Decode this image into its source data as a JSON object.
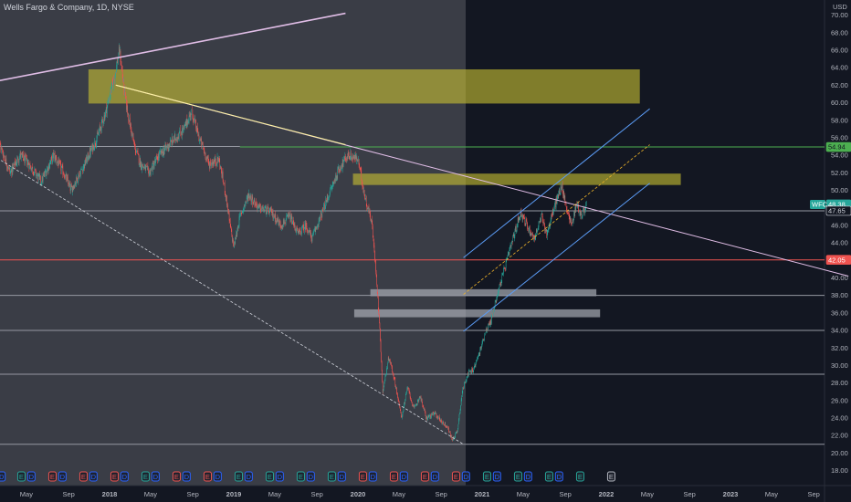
{
  "header": {
    "title": "Wells Fargo & Company, 1D, NYSE"
  },
  "chart_data": {
    "type": "candlestick",
    "symbol": "WFC",
    "currency": "USD",
    "ylim": [
      17,
      71
    ],
    "y_ticks": [
      18,
      20,
      22,
      24,
      26,
      28,
      30,
      32,
      34,
      36,
      38,
      40,
      42,
      44,
      46,
      48,
      50,
      52,
      54,
      56,
      58,
      60,
      62,
      64,
      66,
      68,
      70
    ],
    "y_tick_labels": [
      "18.00",
      "20.00",
      "22.00",
      "24.00",
      "26.00",
      "28.00",
      "30.00",
      "32.00",
      "34.00",
      "36.00",
      "38.00",
      "40.00",
      "42.00",
      "44.00",
      "46.00",
      "48.00",
      "50.00",
      "52.00",
      "54.00",
      "56.00",
      "58.00",
      "60.00",
      "62.00",
      "64.00",
      "66.00",
      "68.00",
      "70.00"
    ],
    "x_ticks": [
      {
        "t": 2017.33,
        "label": "May",
        "bold": false
      },
      {
        "t": 2017.67,
        "label": "Sep",
        "bold": false
      },
      {
        "t": 2018.0,
        "label": "2018",
        "bold": true
      },
      {
        "t": 2018.33,
        "label": "May",
        "bold": false
      },
      {
        "t": 2018.67,
        "label": "Sep",
        "bold": false
      },
      {
        "t": 2019.0,
        "label": "2019",
        "bold": true
      },
      {
        "t": 2019.33,
        "label": "May",
        "bold": false
      },
      {
        "t": 2019.67,
        "label": "Sep",
        "bold": false
      },
      {
        "t": 2020.0,
        "label": "2020",
        "bold": true
      },
      {
        "t": 2020.33,
        "label": "May",
        "bold": false
      },
      {
        "t": 2020.67,
        "label": "Sep",
        "bold": false
      },
      {
        "t": 2021.0,
        "label": "2021",
        "bold": true
      },
      {
        "t": 2021.33,
        "label": "May",
        "bold": false
      },
      {
        "t": 2021.67,
        "label": "Sep",
        "bold": false
      },
      {
        "t": 2022.0,
        "label": "2022",
        "bold": true
      },
      {
        "t": 2022.33,
        "label": "May",
        "bold": false
      },
      {
        "t": 2022.67,
        "label": "Sep",
        "bold": false
      },
      {
        "t": 2023.0,
        "label": "2023",
        "bold": true
      },
      {
        "t": 2023.33,
        "label": "May",
        "bold": false
      },
      {
        "t": 2023.67,
        "label": "Sep",
        "bold": false
      }
    ],
    "price_path": [
      [
        2017.0,
        57.0
      ],
      [
        2017.05,
        59.0
      ],
      [
        2017.12,
        55.0
      ],
      [
        2017.2,
        52.0
      ],
      [
        2017.28,
        54.0
      ],
      [
        2017.35,
        53.0
      ],
      [
        2017.45,
        51.0
      ],
      [
        2017.55,
        54.0
      ],
      [
        2017.63,
        52.0
      ],
      [
        2017.69,
        50.0
      ],
      [
        2017.8,
        53.0
      ],
      [
        2017.9,
        56.0
      ],
      [
        2017.97,
        59.0
      ],
      [
        2018.04,
        63.0
      ],
      [
        2018.08,
        66.0
      ],
      [
        2018.13,
        60.0
      ],
      [
        2018.2,
        55.0
      ],
      [
        2018.25,
        53.0
      ],
      [
        2018.32,
        52.0
      ],
      [
        2018.4,
        54.0
      ],
      [
        2018.5,
        55.5
      ],
      [
        2018.6,
        57.0
      ],
      [
        2018.66,
        59.0
      ],
      [
        2018.72,
        56.0
      ],
      [
        2018.8,
        53.0
      ],
      [
        2018.88,
        53.5
      ],
      [
        2018.93,
        50.0
      ],
      [
        2018.97,
        46.0
      ],
      [
        2019.0,
        43.5
      ],
      [
        2019.05,
        47.0
      ],
      [
        2019.12,
        49.5
      ],
      [
        2019.2,
        48.0
      ],
      [
        2019.3,
        47.5
      ],
      [
        2019.38,
        46.0
      ],
      [
        2019.45,
        47.0
      ],
      [
        2019.52,
        45.0
      ],
      [
        2019.58,
        46.0
      ],
      [
        2019.63,
        44.5
      ],
      [
        2019.7,
        47.0
      ],
      [
        2019.78,
        50.0
      ],
      [
        2019.85,
        52.5
      ],
      [
        2019.92,
        54.0
      ],
      [
        2020.0,
        53.5
      ],
      [
        2020.06,
        49.0
      ],
      [
        2020.11,
        46.5
      ],
      [
        2020.15,
        40.0
      ],
      [
        2020.18,
        33.0
      ],
      [
        2020.2,
        27.0
      ],
      [
        2020.25,
        31.0
      ],
      [
        2020.3,
        28.0
      ],
      [
        2020.35,
        24.0
      ],
      [
        2020.4,
        27.5
      ],
      [
        2020.45,
        25.0
      ],
      [
        2020.5,
        26.5
      ],
      [
        2020.55,
        24.0
      ],
      [
        2020.62,
        24.5
      ],
      [
        2020.68,
        23.5
      ],
      [
        2020.72,
        23.0
      ],
      [
        2020.76,
        21.5
      ],
      [
        2020.8,
        22.5
      ],
      [
        2020.84,
        27.0
      ],
      [
        2020.88,
        29.0
      ],
      [
        2020.93,
        29.5
      ],
      [
        2020.98,
        31.5
      ],
      [
        2021.03,
        34.0
      ],
      [
        2021.07,
        35.0
      ],
      [
        2021.12,
        38.0
      ],
      [
        2021.17,
        40.5
      ],
      [
        2021.22,
        43.0
      ],
      [
        2021.27,
        45.5
      ],
      [
        2021.31,
        47.5
      ],
      [
        2021.36,
        46.0
      ],
      [
        2021.42,
        44.5
      ],
      [
        2021.48,
        47.0
      ],
      [
        2021.52,
        45.0
      ],
      [
        2021.58,
        48.0
      ],
      [
        2021.64,
        50.5
      ],
      [
        2021.68,
        48.0
      ],
      [
        2021.72,
        46.0
      ],
      [
        2021.76,
        48.5
      ],
      [
        2021.8,
        47.0
      ],
      [
        2021.84,
        48.38
      ]
    ],
    "horizontal_lines": [
      {
        "y": 54.94,
        "color": "#4caf50",
        "x_start": 2019.05
      },
      {
        "y": 47.65,
        "color": "#9598a1",
        "x_start": 2017.0
      },
      {
        "y": 42.05,
        "color": "#ef5350",
        "x_start": 2017.0
      },
      {
        "y": 38.0,
        "color": "#9598a1",
        "x_start": 2017.0
      },
      {
        "y": 34.0,
        "color": "#9598a1",
        "x_start": 2017.0
      },
      {
        "y": 29.0,
        "color": "#9598a1",
        "x_start": 2017.0
      },
      {
        "y": 21.0,
        "color": "#9598a1",
        "x_start": 2017.0
      },
      {
        "y": 55.0,
        "color": "#9598a1",
        "x_start": 2017.0,
        "x_end": 2019.05
      }
    ],
    "zones": [
      {
        "x1": 2017.83,
        "x2": 2022.27,
        "y1": 59.9,
        "y2": 63.8,
        "fill": "#c9c132",
        "opacity": 0.6
      },
      {
        "x1": 2019.96,
        "x2": 2022.6,
        "y1": 50.6,
        "y2": 51.9,
        "fill": "#c9c132",
        "opacity": 0.6
      },
      {
        "x1": 2020.1,
        "x2": 2021.92,
        "y1": 37.9,
        "y2": 38.7,
        "fill": "#b2b5be",
        "opacity": 0.65
      },
      {
        "x1": 2019.97,
        "x2": 2021.95,
        "y1": 35.5,
        "y2": 36.4,
        "fill": "#b2b5be",
        "opacity": 0.65
      }
    ],
    "trend_lines": [
      {
        "x1": 2017.0,
        "y1": 62.2,
        "x2": 2019.9,
        "y2": 70.2,
        "color": "#e1bee7",
        "width": 1.6,
        "dash": ""
      },
      {
        "x1": 2018.05,
        "y1": 62.0,
        "x2": 2023.95,
        "y2": 40.2,
        "color": "#e1bee7",
        "width": 1.0,
        "dash": ""
      },
      {
        "x1": 2018.05,
        "y1": 62.0,
        "x2": 2019.9,
        "y2": 55.2,
        "color": "#fff59d",
        "width": 1.0,
        "dash": ""
      },
      {
        "x1": 2017.0,
        "y1": 54.5,
        "x2": 2020.85,
        "y2": 21.0,
        "color": "#d1d4dc",
        "width": 0.8,
        "dash": "3,2"
      },
      {
        "x1": 2020.85,
        "y1": 42.3,
        "x2": 2022.35,
        "y2": 59.3,
        "color": "#5b9cf6",
        "width": 1.0,
        "dash": ""
      },
      {
        "x1": 2020.85,
        "y1": 33.9,
        "x2": 2022.35,
        "y2": 50.8,
        "color": "#5b9cf6",
        "width": 1.0,
        "dash": ""
      },
      {
        "x1": 2020.85,
        "y1": 38.1,
        "x2": 2022.35,
        "y2": 55.2,
        "color": "#f0b429",
        "width": 0.8,
        "dash": "3,2"
      }
    ],
    "price_tags": [
      {
        "y": 54.94,
        "label": "54.94",
        "bg": "#4caf50",
        "color": "#131722"
      },
      {
        "y": 48.38,
        "label": "48.38",
        "bg": "#26a69a",
        "color": "#ffffff",
        "symbol": "WFC"
      },
      {
        "y": 47.65,
        "label": "47.65",
        "bg": "#131722",
        "color": "#d1d4dc"
      },
      {
        "y": 42.05,
        "label": "42.05",
        "bg": "#ef5350",
        "color": "#ffffff"
      }
    ],
    "events": [
      {
        "t": 2017.04,
        "k": "E",
        "c": "#26a69a"
      },
      {
        "t": 2017.13,
        "k": "D",
        "c": "#2962ff"
      },
      {
        "t": 2017.29,
        "k": "E",
        "c": "#26a69a"
      },
      {
        "t": 2017.37,
        "k": "D",
        "c": "#2962ff"
      },
      {
        "t": 2017.54,
        "k": "E",
        "c": "#ef5350"
      },
      {
        "t": 2017.62,
        "k": "D",
        "c": "#2962ff"
      },
      {
        "t": 2017.79,
        "k": "E",
        "c": "#ef5350"
      },
      {
        "t": 2017.87,
        "k": "D",
        "c": "#2962ff"
      },
      {
        "t": 2018.04,
        "k": "E",
        "c": "#ef5350"
      },
      {
        "t": 2018.12,
        "k": "D",
        "c": "#2962ff"
      },
      {
        "t": 2018.29,
        "k": "E",
        "c": "#26a69a"
      },
      {
        "t": 2018.37,
        "k": "D",
        "c": "#2962ff"
      },
      {
        "t": 2018.54,
        "k": "E",
        "c": "#ef5350"
      },
      {
        "t": 2018.62,
        "k": "D",
        "c": "#2962ff"
      },
      {
        "t": 2018.79,
        "k": "E",
        "c": "#ef5350"
      },
      {
        "t": 2018.87,
        "k": "D",
        "c": "#2962ff"
      },
      {
        "t": 2019.04,
        "k": "E",
        "c": "#26a69a"
      },
      {
        "t": 2019.12,
        "k": "D",
        "c": "#2962ff"
      },
      {
        "t": 2019.29,
        "k": "E",
        "c": "#26a69a"
      },
      {
        "t": 2019.37,
        "k": "D",
        "c": "#2962ff"
      },
      {
        "t": 2019.54,
        "k": "E",
        "c": "#26a69a"
      },
      {
        "t": 2019.62,
        "k": "D",
        "c": "#2962ff"
      },
      {
        "t": 2019.79,
        "k": "E",
        "c": "#26a69a"
      },
      {
        "t": 2019.87,
        "k": "D",
        "c": "#2962ff"
      },
      {
        "t": 2020.04,
        "k": "E",
        "c": "#ef5350"
      },
      {
        "t": 2020.12,
        "k": "D",
        "c": "#2962ff"
      },
      {
        "t": 2020.29,
        "k": "E",
        "c": "#ef5350"
      },
      {
        "t": 2020.37,
        "k": "D",
        "c": "#2962ff"
      },
      {
        "t": 2020.54,
        "k": "E",
        "c": "#ef5350"
      },
      {
        "t": 2020.62,
        "k": "D",
        "c": "#2962ff"
      },
      {
        "t": 2020.79,
        "k": "E",
        "c": "#ef5350"
      },
      {
        "t": 2020.87,
        "k": "D",
        "c": "#2962ff"
      },
      {
        "t": 2021.04,
        "k": "E",
        "c": "#26a69a"
      },
      {
        "t": 2021.12,
        "k": "D",
        "c": "#2962ff"
      },
      {
        "t": 2021.29,
        "k": "E",
        "c": "#26a69a"
      },
      {
        "t": 2021.37,
        "k": "D",
        "c": "#2962ff"
      },
      {
        "t": 2021.54,
        "k": "E",
        "c": "#26a69a"
      },
      {
        "t": 2021.62,
        "k": "D",
        "c": "#2962ff"
      },
      {
        "t": 2021.79,
        "k": "E",
        "c": "#26a69a"
      },
      {
        "t": 2022.04,
        "k": "E",
        "c": "#b2b5be"
      }
    ]
  }
}
